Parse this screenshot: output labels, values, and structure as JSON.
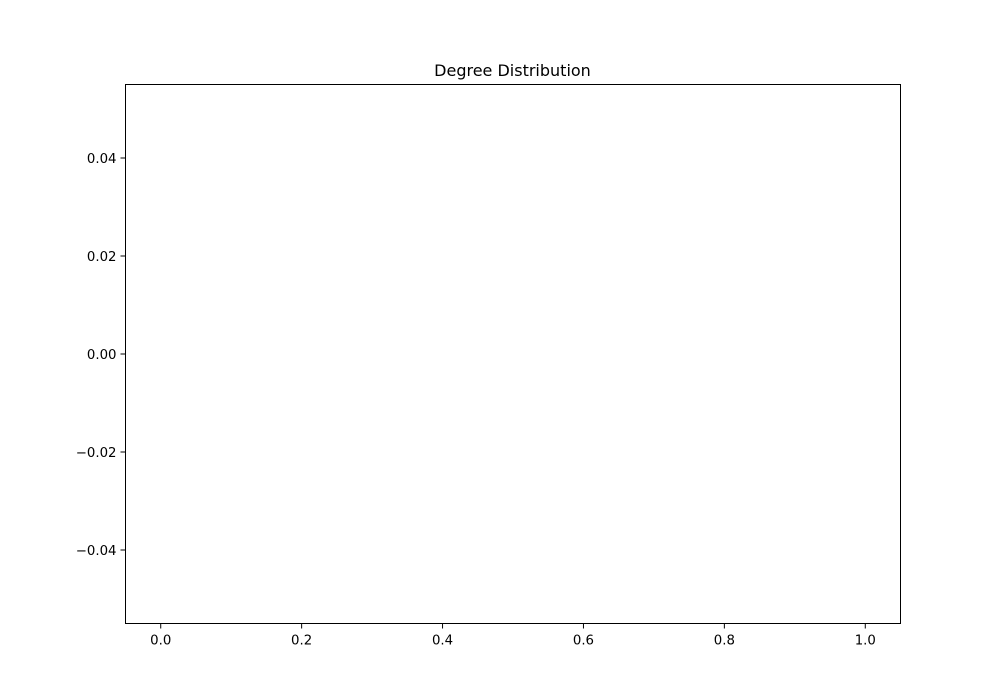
{
  "chart_data": {
    "type": "line",
    "title": "Degree Distribution",
    "xlabel": "",
    "ylabel": "",
    "series": [],
    "xlim": [
      -0.05,
      1.05
    ],
    "ylim": [
      -0.055,
      0.055
    ],
    "x_ticks": [
      0.0,
      0.2,
      0.4,
      0.6,
      0.8,
      1.0
    ],
    "x_tick_labels": [
      "0.0",
      "0.2",
      "0.4",
      "0.6",
      "0.8",
      "1.0"
    ],
    "y_ticks": [
      0.04,
      0.02,
      0.0,
      -0.02,
      -0.04
    ],
    "y_tick_labels": [
      "0.04",
      "0.02",
      "0.00",
      "−0.02",
      "−0.04"
    ],
    "grid": false,
    "legend": "none"
  }
}
